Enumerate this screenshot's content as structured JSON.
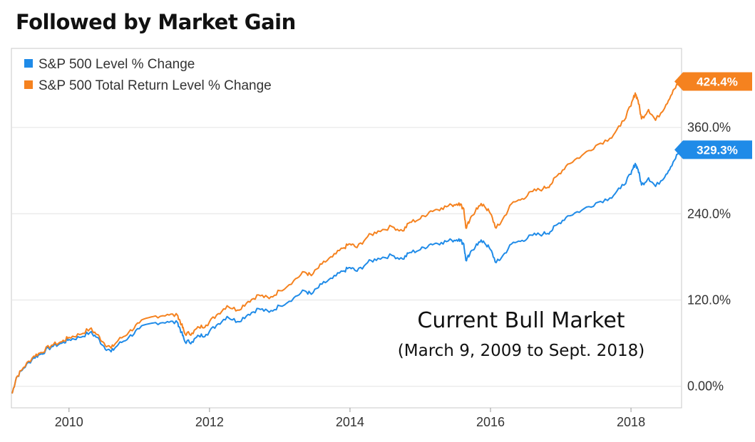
{
  "page": {
    "title": "Followed by Market Gain"
  },
  "chart_data": {
    "type": "line",
    "title": "Followed by Market Gain",
    "xlabel": "",
    "ylabel": "",
    "xlim": [
      2009.18,
      2018.72
    ],
    "ylim": [
      -30,
      470
    ],
    "grid": true,
    "legend_position": "top-left",
    "y_ticks": [
      {
        "value": 0,
        "label": "0.00%"
      },
      {
        "value": 120,
        "label": "120.0%"
      },
      {
        "value": 240,
        "label": "240.0%"
      },
      {
        "value": 360,
        "label": "360.0%"
      }
    ],
    "x_ticks": [
      {
        "value": 2010,
        "label": "2010"
      },
      {
        "value": 2012,
        "label": "2012"
      },
      {
        "value": 2014,
        "label": "2014"
      },
      {
        "value": 2016,
        "label": "2016"
      },
      {
        "value": 2018,
        "label": "2018"
      }
    ],
    "series": [
      {
        "name": "S&P 500 Level % Change",
        "color": "#1f8be8",
        "end_label": "329.3%",
        "points": [
          [
            2009.19,
            -10
          ],
          [
            2009.25,
            12
          ],
          [
            2009.35,
            25
          ],
          [
            2009.5,
            40
          ],
          [
            2009.6,
            45
          ],
          [
            2009.75,
            55
          ],
          [
            2009.9,
            60
          ],
          [
            2010.0,
            65
          ],
          [
            2010.15,
            68
          ],
          [
            2010.3,
            75
          ],
          [
            2010.4,
            68
          ],
          [
            2010.5,
            55
          ],
          [
            2010.6,
            48
          ],
          [
            2010.7,
            58
          ],
          [
            2010.85,
            68
          ],
          [
            2011.0,
            80
          ],
          [
            2011.2,
            88
          ],
          [
            2011.4,
            90
          ],
          [
            2011.55,
            88
          ],
          [
            2011.6,
            75
          ],
          [
            2011.65,
            62
          ],
          [
            2011.75,
            62
          ],
          [
            2011.85,
            70
          ],
          [
            2011.95,
            72
          ],
          [
            2012.1,
            85
          ],
          [
            2012.25,
            97
          ],
          [
            2012.4,
            90
          ],
          [
            2012.55,
            100
          ],
          [
            2012.7,
            108
          ],
          [
            2012.85,
            103
          ],
          [
            2013.0,
            112
          ],
          [
            2013.2,
            123
          ],
          [
            2013.35,
            133
          ],
          [
            2013.45,
            128
          ],
          [
            2013.6,
            142
          ],
          [
            2013.75,
            150
          ],
          [
            2013.9,
            160
          ],
          [
            2014.0,
            165
          ],
          [
            2014.1,
            160
          ],
          [
            2014.25,
            172
          ],
          [
            2014.4,
            178
          ],
          [
            2014.6,
            182
          ],
          [
            2014.75,
            177
          ],
          [
            2014.85,
            186
          ],
          [
            2015.0,
            190
          ],
          [
            2015.15,
            198
          ],
          [
            2015.3,
            200
          ],
          [
            2015.45,
            203
          ],
          [
            2015.55,
            205
          ],
          [
            2015.62,
            198
          ],
          [
            2015.65,
            175
          ],
          [
            2015.7,
            182
          ],
          [
            2015.8,
            198
          ],
          [
            2015.9,
            202
          ],
          [
            2016.0,
            190
          ],
          [
            2016.08,
            172
          ],
          [
            2016.15,
            178
          ],
          [
            2016.3,
            198
          ],
          [
            2016.45,
            203
          ],
          [
            2016.6,
            210
          ],
          [
            2016.75,
            212
          ],
          [
            2016.85,
            215
          ],
          [
            2016.95,
            225
          ],
          [
            2017.1,
            237
          ],
          [
            2017.3,
            245
          ],
          [
            2017.5,
            255
          ],
          [
            2017.7,
            262
          ],
          [
            2017.85,
            275
          ],
          [
            2018.0,
            295
          ],
          [
            2018.06,
            310
          ],
          [
            2018.1,
            302
          ],
          [
            2018.15,
            280
          ],
          [
            2018.25,
            290
          ],
          [
            2018.35,
            278
          ],
          [
            2018.5,
            295
          ],
          [
            2018.6,
            312
          ],
          [
            2018.7,
            329
          ]
        ]
      },
      {
        "name": "S&P 500 Total Return Level % Change",
        "color": "#f5821f",
        "end_label": "424.4%",
        "points": [
          [
            2009.19,
            -10
          ],
          [
            2009.25,
            12
          ],
          [
            2009.35,
            26
          ],
          [
            2009.5,
            42
          ],
          [
            2009.6,
            47
          ],
          [
            2009.75,
            57
          ],
          [
            2009.9,
            62
          ],
          [
            2010.0,
            68
          ],
          [
            2010.15,
            72
          ],
          [
            2010.3,
            80
          ],
          [
            2010.4,
            72
          ],
          [
            2010.5,
            60
          ],
          [
            2010.6,
            53
          ],
          [
            2010.7,
            64
          ],
          [
            2010.85,
            75
          ],
          [
            2011.0,
            88
          ],
          [
            2011.2,
            97
          ],
          [
            2011.4,
            100
          ],
          [
            2011.55,
            98
          ],
          [
            2011.6,
            86
          ],
          [
            2011.65,
            73
          ],
          [
            2011.75,
            74
          ],
          [
            2011.85,
            82
          ],
          [
            2011.95,
            85
          ],
          [
            2012.1,
            99
          ],
          [
            2012.25,
            112
          ],
          [
            2012.4,
            106
          ],
          [
            2012.55,
            118
          ],
          [
            2012.7,
            127
          ],
          [
            2012.85,
            122
          ],
          [
            2013.0,
            133
          ],
          [
            2013.2,
            147
          ],
          [
            2013.35,
            159
          ],
          [
            2013.45,
            154
          ],
          [
            2013.6,
            170
          ],
          [
            2013.75,
            180
          ],
          [
            2013.9,
            192
          ],
          [
            2014.0,
            198
          ],
          [
            2014.1,
            193
          ],
          [
            2014.25,
            208
          ],
          [
            2014.4,
            216
          ],
          [
            2014.6,
            222
          ],
          [
            2014.75,
            216
          ],
          [
            2014.85,
            228
          ],
          [
            2015.0,
            233
          ],
          [
            2015.15,
            244
          ],
          [
            2015.3,
            248
          ],
          [
            2015.45,
            252
          ],
          [
            2015.55,
            255
          ],
          [
            2015.62,
            247
          ],
          [
            2015.65,
            220
          ],
          [
            2015.7,
            229
          ],
          [
            2015.8,
            248
          ],
          [
            2015.9,
            253
          ],
          [
            2016.0,
            240
          ],
          [
            2016.08,
            220
          ],
          [
            2016.15,
            228
          ],
          [
            2016.3,
            254
          ],
          [
            2016.45,
            261
          ],
          [
            2016.6,
            271
          ],
          [
            2016.75,
            275
          ],
          [
            2016.85,
            280
          ],
          [
            2016.95,
            293
          ],
          [
            2017.1,
            309
          ],
          [
            2017.3,
            321
          ],
          [
            2017.5,
            335
          ],
          [
            2017.7,
            345
          ],
          [
            2017.85,
            362
          ],
          [
            2018.0,
            390
          ],
          [
            2018.06,
            408
          ],
          [
            2018.1,
            398
          ],
          [
            2018.15,
            372
          ],
          [
            2018.25,
            385
          ],
          [
            2018.35,
            370
          ],
          [
            2018.5,
            392
          ],
          [
            2018.6,
            412
          ],
          [
            2018.7,
            424
          ]
        ]
      }
    ],
    "annotation": {
      "main": "Current Bull Market",
      "sub": "(March 9, 2009 to Sept. 2018)"
    }
  }
}
